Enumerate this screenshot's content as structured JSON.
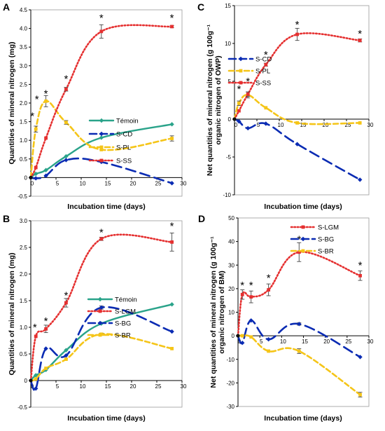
{
  "chart_data": [
    {
      "panel": "A",
      "type": "line",
      "xlabel": "Incubation time (days)",
      "ylabel": "Quantities of mineral nitrogen (mg)",
      "xlim": [
        0,
        30
      ],
      "ylim": [
        -0.5,
        4.5
      ],
      "xticks": [
        0,
        5,
        10,
        15,
        20,
        25,
        30
      ],
      "yticks": [
        -0.5,
        0,
        0.5,
        1.0,
        1.5,
        2.0,
        2.5,
        3.0,
        3.5,
        4.0,
        4.5
      ],
      "ytick_labels": [
        "-0.5",
        "0",
        "0.5",
        "1.0",
        "1.5",
        "2.0",
        "2.5",
        "3.0",
        "3.5",
        "4.0",
        "4.5"
      ],
      "legend_position": "center-right",
      "series": [
        {
          "name": "Témoin",
          "color": "#2aa38a",
          "style": "solid",
          "marker": "diamond",
          "x": [
            0,
            1,
            3,
            7,
            14,
            28
          ],
          "y": [
            0,
            0.1,
            0.2,
            0.57,
            1.07,
            1.43
          ],
          "err": [
            0,
            0,
            0,
            0,
            0,
            0
          ]
        },
        {
          "name": "S-CD",
          "color": "#0a2bb3",
          "style": "longdash",
          "marker": "diamond",
          "x": [
            0,
            1,
            3,
            7,
            14,
            28
          ],
          "y": [
            0,
            -0.02,
            0.05,
            0.47,
            0.42,
            -0.15
          ],
          "err": [
            0,
            0,
            0,
            0,
            0,
            0
          ]
        },
        {
          "name": "S-PL",
          "color": "#f5c518",
          "style": "dash",
          "marker": "square",
          "x": [
            0,
            1,
            3,
            7,
            14,
            28
          ],
          "y": [
            0,
            1.3,
            2.05,
            1.48,
            0.75,
            1.05
          ],
          "err": [
            0,
            0.08,
            0.15,
            0.05,
            0,
            0.07
          ]
        },
        {
          "name": "S-SS",
          "color": "#e53030",
          "style": "dot",
          "marker": "square",
          "x": [
            0,
            1,
            3,
            7,
            14,
            28
          ],
          "y": [
            0,
            0.27,
            1.06,
            2.37,
            3.92,
            4.05
          ],
          "err": [
            0,
            0,
            0,
            0.05,
            0.18,
            0.03
          ]
        }
      ],
      "stars": [
        {
          "x": 0.3,
          "y": 1.65
        },
        {
          "x": 1.2,
          "y": 2.1
        },
        {
          "x": 3,
          "y": 2.25
        },
        {
          "x": 7,
          "y": 2.65
        },
        {
          "x": 14,
          "y": 4.28
        },
        {
          "x": 28,
          "y": 4.28
        }
      ]
    },
    {
      "panel": "B",
      "type": "line",
      "xlabel": "Incubation time (days)",
      "ylabel": "Quantities of mineral nitrogen (mg)",
      "xlim": [
        0,
        30
      ],
      "ylim": [
        -0.5,
        3.0
      ],
      "xticks": [
        0,
        5,
        10,
        15,
        20,
        25,
        30
      ],
      "yticks": [
        -0.5,
        0,
        0.5,
        1.0,
        1.5,
        2.0,
        2.5,
        3.0
      ],
      "ytick_labels": [
        "-0.5",
        "0",
        "0.5",
        "1.0",
        "1.5",
        "2.0",
        "2.5",
        "3.0"
      ],
      "legend_position": "center-right",
      "series": [
        {
          "name": "Témoin",
          "color": "#2aa38a",
          "style": "solid",
          "marker": "diamond",
          "x": [
            0,
            1,
            3,
            7,
            14,
            28
          ],
          "y": [
            0,
            0.1,
            0.2,
            0.57,
            1.07,
            1.43
          ],
          "err": [
            0,
            0,
            0,
            0,
            0,
            0
          ]
        },
        {
          "name": "S-LGM",
          "color": "#e53030",
          "style": "dot",
          "marker": "square",
          "x": [
            0,
            1,
            3,
            7,
            14,
            28
          ],
          "y": [
            0,
            0.83,
            0.97,
            1.46,
            2.66,
            2.6
          ],
          "err": [
            0,
            0,
            0.07,
            0.08,
            0.03,
            0.17
          ]
        },
        {
          "name": "S-BG",
          "color": "#0a2bb3",
          "style": "longdash",
          "marker": "diamond",
          "x": [
            0,
            1,
            3,
            7,
            14,
            28
          ],
          "y": [
            0,
            -0.15,
            0.6,
            0.47,
            1.37,
            0.92
          ],
          "err": [
            0,
            0,
            0,
            0,
            0.03,
            0
          ]
        },
        {
          "name": "S-BR",
          "color": "#f5c518",
          "style": "dash",
          "marker": "square",
          "x": [
            0,
            1,
            3,
            7,
            14,
            28
          ],
          "y": [
            0,
            0.03,
            0.23,
            0.4,
            0.87,
            0.6
          ],
          "err": [
            0,
            0,
            0,
            0,
            0.02,
            0
          ]
        }
      ],
      "stars": [
        {
          "x": 0.8,
          "y": 1.0
        },
        {
          "x": 3,
          "y": 1.12
        },
        {
          "x": 7,
          "y": 1.6
        },
        {
          "x": 14,
          "y": 2.78
        },
        {
          "x": 28,
          "y": 2.9
        }
      ]
    },
    {
      "panel": "C",
      "type": "line",
      "xlabel": "Incubation time (days)",
      "ylabel": "Net quantities of mineral nitrogen (g 100g⁻¹ organic nitrogen of OWP)",
      "xlim": [
        0,
        30
      ],
      "ylim": [
        -10,
        15
      ],
      "xticks": [
        0,
        5,
        10,
        15,
        20,
        25,
        30
      ],
      "yticks": [
        -10,
        -5,
        0,
        5,
        10,
        15
      ],
      "ytick_labels": [
        "-10",
        "-5",
        "0",
        "5",
        "10",
        "15"
      ],
      "legend_position": "center",
      "series": [
        {
          "name": "S-CD",
          "color": "#0a2bb3",
          "style": "longdash",
          "marker": "diamond",
          "x": [
            0,
            1,
            3,
            7,
            14,
            28
          ],
          "y": [
            0,
            -0.3,
            -1.2,
            -0.6,
            -3.3,
            -8.0
          ],
          "err": [
            0,
            0,
            0,
            0,
            0,
            0
          ]
        },
        {
          "name": "S-PL",
          "color": "#f5c518",
          "style": "dash",
          "marker": "square",
          "x": [
            0,
            1,
            3,
            7,
            14,
            28
          ],
          "y": [
            0,
            2.1,
            3.2,
            1.5,
            -0.5,
            -0.5
          ],
          "err": [
            0,
            0.3,
            0.4,
            0,
            0,
            0
          ]
        },
        {
          "name": "S-SS",
          "color": "#e53030",
          "style": "dot",
          "marker": "square",
          "x": [
            0,
            1,
            3,
            7,
            14,
            28
          ],
          "y": [
            0,
            1.1,
            3.3,
            7.2,
            11.2,
            10.4
          ],
          "err": [
            0,
            0,
            0.3,
            0.2,
            0.8,
            0.2
          ]
        }
      ],
      "stars": [
        {
          "x": 1,
          "y": 4.0
        },
        {
          "x": 3,
          "y": 5.0
        },
        {
          "x": 7,
          "y": 8.5
        },
        {
          "x": 14,
          "y": 12.5
        },
        {
          "x": 28,
          "y": 11.3
        }
      ]
    },
    {
      "panel": "D",
      "type": "line",
      "xlabel": "Incubation time (days)",
      "ylabel": "Net quantities of mineral nitrogen (g 100g⁻¹ organic nitrogen of BM)",
      "xlim": [
        0,
        30
      ],
      "ylim": [
        -30,
        50
      ],
      "xticks": [
        0,
        5,
        10,
        15,
        20,
        25,
        30
      ],
      "yticks": [
        -30,
        -20,
        -10,
        0,
        10,
        20,
        30,
        40,
        50
      ],
      "ytick_labels": [
        "-30",
        "-20",
        "-10",
        "0",
        "10",
        "20",
        "30",
        "40",
        "50"
      ],
      "legend_position": "top-right",
      "series": [
        {
          "name": "S-LGM",
          "color": "#e53030",
          "style": "dot",
          "marker": "square",
          "x": [
            0,
            1,
            3,
            7,
            14,
            28
          ],
          "y": [
            0,
            17.5,
            16.5,
            19.5,
            35.5,
            25.5
          ],
          "err": [
            0,
            2.0,
            2.5,
            2.5,
            4.0,
            2.0
          ]
        },
        {
          "name": "S-BG",
          "color": "#0a2bb3",
          "style": "longdash",
          "marker": "diamond",
          "x": [
            0,
            1,
            3,
            7,
            14,
            28
          ],
          "y": [
            0,
            -3,
            6.5,
            -1.5,
            5,
            -9
          ],
          "err": [
            0,
            0,
            0,
            0,
            0.5,
            0
          ]
        },
        {
          "name": "S-BR",
          "color": "#f5c518",
          "style": "dash",
          "marker": "square",
          "x": [
            0,
            1,
            3,
            7,
            14,
            28
          ],
          "y": [
            0,
            0,
            -0.5,
            -6.5,
            -6.5,
            -25
          ],
          "err": [
            0,
            0,
            0,
            0,
            1.0,
            1.0
          ]
        }
      ],
      "stars": [
        {
          "x": 1,
          "y": 21.5
        },
        {
          "x": 3,
          "y": 21.5
        },
        {
          "x": 7,
          "y": 24.5
        },
        {
          "x": 14,
          "y": 41
        },
        {
          "x": 28,
          "y": 30
        }
      ]
    }
  ]
}
